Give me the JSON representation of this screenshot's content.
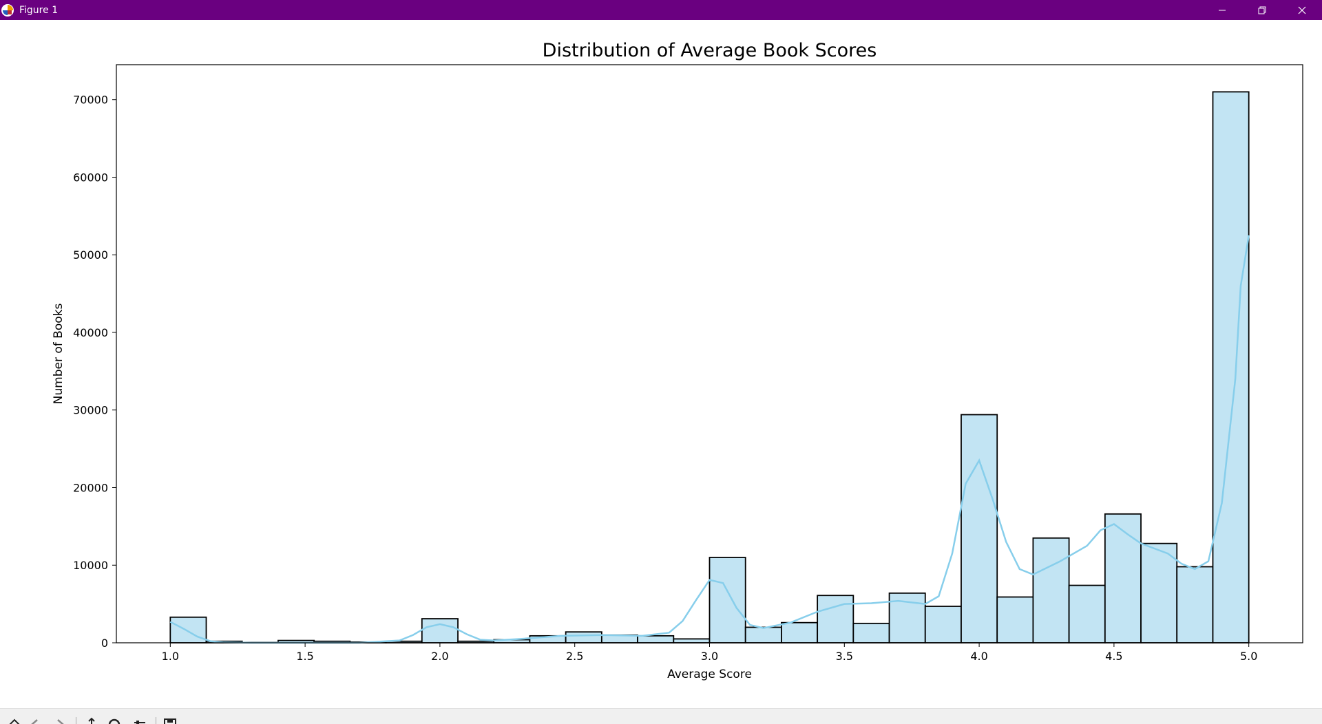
{
  "window": {
    "title": "Figure 1"
  },
  "colors": {
    "titlebar": "#6a0080",
    "bar_fill": "#c2e4f3",
    "bar_edge": "#000000",
    "kde_line": "#87ceeb"
  },
  "toolbar": {
    "icons": [
      "home-icon",
      "back-icon",
      "forward-icon",
      "pan-icon",
      "zoom-icon",
      "configure-icon",
      "save-icon"
    ]
  },
  "chart_data": {
    "type": "bar",
    "title": "Distribution of Average Book Scores",
    "xlabel": "Average Score",
    "ylabel": "Number of Books",
    "xlim": [
      0.8,
      5.2
    ],
    "ylim": [
      0,
      74500
    ],
    "xticks": [
      1.0,
      1.5,
      2.0,
      2.5,
      3.0,
      3.5,
      4.0,
      4.5,
      5.0
    ],
    "xtick_labels": [
      "1.0",
      "1.5",
      "2.0",
      "2.5",
      "3.0",
      "3.5",
      "4.0",
      "4.5",
      "5.0"
    ],
    "yticks": [
      0,
      10000,
      20000,
      30000,
      40000,
      50000,
      60000,
      70000
    ],
    "ytick_labels": [
      "0",
      "10000",
      "20000",
      "30000",
      "40000",
      "50000",
      "60000",
      "70000"
    ],
    "bin_edges": [
      1.0,
      1.1333,
      1.2667,
      1.4,
      1.5333,
      1.6667,
      1.8,
      1.9333,
      2.0667,
      2.2,
      2.3333,
      2.4667,
      2.6,
      2.7333,
      2.8667,
      3.0,
      3.1333,
      3.2667,
      3.4,
      3.5333,
      3.6667,
      3.8,
      3.9333,
      4.0667,
      4.2,
      4.3333,
      4.4667,
      4.6,
      4.7333,
      4.8667,
      5.0
    ],
    "values": [
      3300,
      200,
      50,
      300,
      200,
      100,
      200,
      3100,
      200,
      400,
      900,
      1400,
      1000,
      900,
      500,
      11000,
      2000,
      2600,
      6100,
      2500,
      6400,
      4700,
      29400,
      5900,
      13500,
      7400,
      16600,
      12800,
      9800,
      71000
    ],
    "kde": {
      "x": [
        1.0,
        1.05,
        1.1,
        1.15,
        1.2,
        1.3,
        1.5,
        1.7,
        1.85,
        1.9,
        1.95,
        2.0,
        2.05,
        2.1,
        2.15,
        2.2,
        2.3,
        2.45,
        2.6,
        2.75,
        2.85,
        2.9,
        2.95,
        3.0,
        3.05,
        3.1,
        3.15,
        3.2,
        3.3,
        3.4,
        3.5,
        3.6,
        3.7,
        3.8,
        3.85,
        3.9,
        3.95,
        4.0,
        4.05,
        4.1,
        4.15,
        4.2,
        4.3,
        4.4,
        4.45,
        4.5,
        4.55,
        4.6,
        4.7,
        4.75,
        4.8,
        4.85,
        4.9,
        4.95,
        4.97,
        5.0
      ],
      "y": [
        2700,
        1800,
        800,
        200,
        50,
        0,
        0,
        0,
        300,
        1000,
        2000,
        2400,
        2000,
        1100,
        400,
        300,
        500,
        900,
        1000,
        900,
        1300,
        2800,
        5500,
        8100,
        7700,
        4500,
        2300,
        1900,
        2600,
        4000,
        5000,
        5100,
        5400,
        5000,
        6000,
        11500,
        20500,
        23500,
        18500,
        13000,
        9500,
        8800,
        10500,
        12500,
        14500,
        15300,
        14000,
        12800,
        11500,
        10200,
        9500,
        10500,
        18000,
        34000,
        46000,
        52500
      ]
    }
  }
}
